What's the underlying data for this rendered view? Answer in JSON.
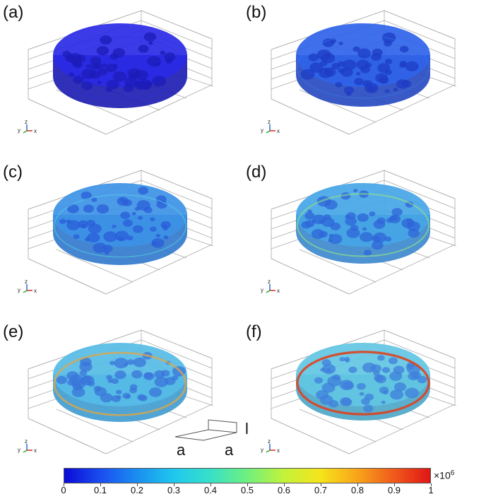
{
  "panels": [
    {
      "label": "(a)",
      "fill": "#2a2ae6",
      "edge": "#1a1ab0",
      "spot": "#1c1cb8",
      "rim": "#2a2ae6",
      "stress": 0.0
    },
    {
      "label": "(b)",
      "fill": "#2f63e8",
      "edge": "#2448c0",
      "spot": "#1d3cc4",
      "rim": "#3a7ef0",
      "stress": 0.1
    },
    {
      "label": "(c)",
      "fill": "#3d93e6",
      "edge": "#2f78cc",
      "spot": "#2a5ed8",
      "rim": "#59d2e6",
      "stress": 0.25
    },
    {
      "label": "(d)",
      "fill": "#45a6e6",
      "edge": "#3a86cc",
      "spot": "#2f66d8",
      "rim": "#8ee08a",
      "stress": 0.45
    },
    {
      "label": "(e)",
      "fill": "#56bce6",
      "edge": "#3e9bd0",
      "spot": "#3a74da",
      "rim": "#e8a540",
      "stress": 0.65
    },
    {
      "label": "(f)",
      "fill": "#62c6e3",
      "edge": "#4aa5c8",
      "spot": "#3f7fdb",
      "rim": "#e0401c",
      "stress": 0.9
    }
  ],
  "axes_triad": {
    "x": "x",
    "y": "y",
    "z": "z"
  },
  "dimension_sketch": {
    "width_label_1": "a",
    "width_label_2": "a",
    "height_label": "l"
  },
  "colorbar": {
    "ticks": [
      "0",
      "0.1",
      "0.2",
      "0.3",
      "0.4",
      "0.5",
      "0.6",
      "0.7",
      "0.8",
      "0.9",
      "1"
    ],
    "multiplier_base": "×10",
    "multiplier_exp": "6",
    "min": 0,
    "max": 1
  }
}
